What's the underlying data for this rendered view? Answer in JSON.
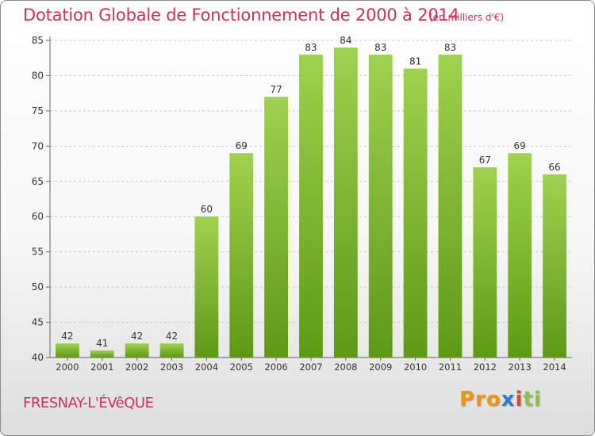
{
  "header": {
    "title": "Dotation Globale de Fonctionnement de 2000 à 2014",
    "unit_note": "(en milliers d'€)"
  },
  "footer": {
    "commune": "FRESNAY-L'ÉVêQUE",
    "logo": {
      "part1": "Pro",
      "part2": "x",
      "part3": "i",
      "part4": "ti"
    }
  },
  "colors": {
    "bar_light": "#9fd24e",
    "bar_dark": "#5d9a14",
    "title": "#c8305a"
  },
  "chart_data": {
    "type": "bar",
    "categories": [
      "2000",
      "2001",
      "2002",
      "2003",
      "2004",
      "2005",
      "2006",
      "2007",
      "2008",
      "2009",
      "2010",
      "2011",
      "2012",
      "2013",
      "2014"
    ],
    "values": [
      42,
      41,
      42,
      42,
      60,
      69,
      77,
      83,
      84,
      83,
      81,
      83,
      67,
      69,
      66
    ],
    "ylim": [
      40,
      85
    ],
    "yticks": [
      40,
      45,
      50,
      55,
      60,
      65,
      70,
      75,
      80,
      85
    ],
    "grid": "horizontal dashed",
    "legend": "none"
  }
}
